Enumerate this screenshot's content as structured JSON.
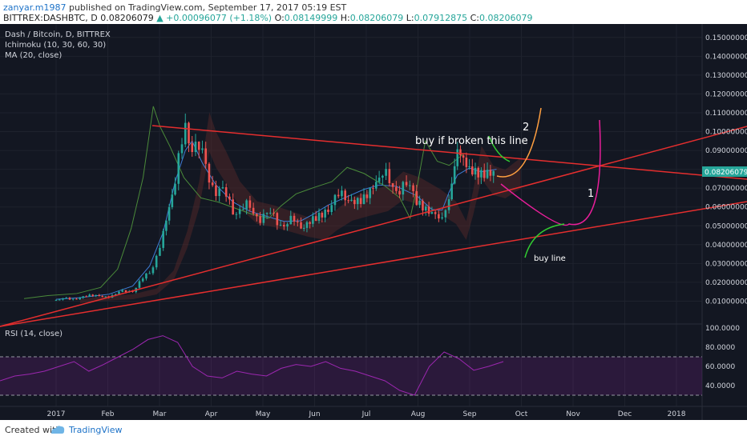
{
  "header": {
    "author": "zanyar.m1987",
    "published": "published on TradingView.com, September 17, 2017 05:19 EST",
    "symbol": "BITTREX:DASHBTC, D",
    "price": "0.08206079",
    "change": "+0.00096077 (+1.18%)",
    "o_label": "O:",
    "o": "0.08149999",
    "h_label": "H:",
    "h": "0.08206079",
    "l_label": "L:",
    "l": "0.07912875",
    "c_label": "C:",
    "c": "0.08206079"
  },
  "legend": {
    "title": "Dash / Bitcoin, D, BITTREX",
    "ichimoku": "Ichimoku (10, 30, 60, 30)",
    "ma": "MA (20, close)",
    "rsi": "RSI (14, close)"
  },
  "annotations": {
    "buy_break": "buy if broken this line",
    "buy_line": "buy line",
    "scenario1": "1",
    "scenario2": "2"
  },
  "footer": {
    "created": "Created with",
    "brand": "TradingView"
  },
  "colors": {
    "background": "#131722",
    "trendline": "#e52e2e",
    "candle_up": "#26a69a",
    "candle_down": "#ef5350",
    "rsi": "#9c27b0",
    "scenario1": "#e91e9a",
    "scenario2": "#ff9f40",
    "buy_arrow": "#32cd32",
    "price_tag": "#26a69a"
  },
  "chart_data": {
    "type": "candlestick",
    "symbol": "DASHBTC",
    "price_axis": {
      "ticks": [
        "0.15000000",
        "0.14000000",
        "0.13000000",
        "0.12000000",
        "0.11000000",
        "0.10000000",
        "0.09000000",
        "0.08000000",
        "0.07000000",
        "0.06000000",
        "0.05000000",
        "0.04000000",
        "0.03000000",
        "0.02000000",
        "0.01000000"
      ],
      "range": [
        0.0,
        0.155
      ]
    },
    "last_price": "0.08206079",
    "time_axis": [
      "2017",
      "Feb",
      "Mar",
      "Apr",
      "May",
      "Jun",
      "Jul",
      "Aug",
      "Sep",
      "Oct",
      "Nov",
      "Dec",
      "2018"
    ],
    "price_series": {
      "name": "close",
      "x": [
        "2017-01-01",
        "2017-01-15",
        "2017-02-01",
        "2017-02-15",
        "2017-02-25",
        "2017-03-05",
        "2017-03-12",
        "2017-03-18",
        "2017-03-22",
        "2017-03-28",
        "2017-04-05",
        "2017-04-15",
        "2017-04-25",
        "2017-05-05",
        "2017-05-15",
        "2017-05-25",
        "2017-06-01",
        "2017-06-10",
        "2017-06-20",
        "2017-07-01",
        "2017-07-10",
        "2017-07-20",
        "2017-08-01",
        "2017-08-10",
        "2017-08-16",
        "2017-08-20",
        "2017-08-25",
        "2017-09-01",
        "2017-09-08",
        "2017-09-17"
      ],
      "y": [
        0.0105,
        0.012,
        0.013,
        0.016,
        0.025,
        0.045,
        0.07,
        0.105,
        0.095,
        0.085,
        0.07,
        0.06,
        0.058,
        0.055,
        0.052,
        0.05,
        0.056,
        0.062,
        0.065,
        0.068,
        0.075,
        0.072,
        0.066,
        0.06,
        0.05,
        0.065,
        0.088,
        0.078,
        0.076,
        0.082
      ]
    },
    "rsi": {
      "levels": [
        80,
        60,
        40
      ],
      "ticks": [
        "100.0000",
        "80.0000",
        "60.0000",
        "40.0000"
      ],
      "overbought": 70,
      "oversold": 30,
      "range": [
        20,
        100
      ],
      "values": [
        45,
        50,
        52,
        55,
        60,
        65,
        55,
        62,
        70,
        78,
        88,
        92,
        85,
        60,
        50,
        48,
        55,
        52,
        50,
        58,
        62,
        60,
        65,
        58,
        55,
        50,
        45,
        35,
        30,
        60,
        75,
        68,
        56,
        60,
        65
      ]
    },
    "trendlines": [
      {
        "name": "descending resistance"
      },
      {
        "name": "ascending support upper"
      },
      {
        "name": "ascending support lower"
      }
    ]
  }
}
